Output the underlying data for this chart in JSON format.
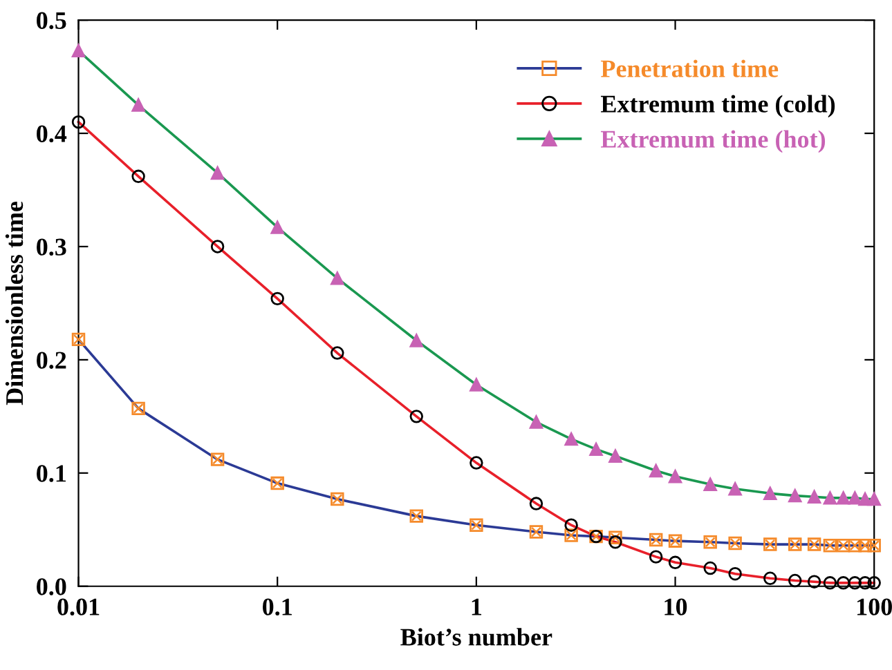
{
  "chart_data": {
    "type": "line",
    "xlabel": "Biot’s number",
    "ylabel": "Dimensionless time",
    "log": "x",
    "xlim": [
      0.01,
      100
    ],
    "xticks": [
      0.01,
      0.1,
      1,
      10,
      100
    ],
    "ylim": [
      0,
      0.5
    ],
    "yticks": [
      {
        "value": 0,
        "label": "0.0"
      },
      0.1,
      0.2,
      0.3,
      0.4,
      0.5
    ],
    "legend": "top right",
    "grid": false,
    "line_style": "solid",
    "x": [
      0.01,
      0.02,
      0.05,
      0.1,
      0.2,
      0.5,
      1,
      2,
      3,
      4,
      5,
      8,
      10,
      15,
      20,
      30,
      40,
      50,
      60,
      70,
      80,
      90,
      100
    ],
    "series": [
      {
        "name": "Penetration time",
        "color": "#2b3a95",
        "colors": [
          "#f58a2a",
          "#f58a2a",
          "#f58a2a",
          "#f58a2a",
          "#f58a2a",
          "#f58a2a",
          "#f58a2a",
          "#f58a2a",
          "#f58a2a",
          "#f58a2a",
          "#f58a2a",
          "#f58a2a",
          "#f58a2a",
          "#f58a2a",
          "#f58a2a",
          "#f58a2a",
          "#f58a2a",
          "#f58a2a",
          "#f58a2a",
          "#f58a2a",
          "#f58a2a",
          "#f58a2a",
          "#f58a2a"
        ],
        "marker": "square",
        "values": [
          0.218,
          0.157,
          0.112,
          0.091,
          0.077,
          0.062,
          0.054,
          0.048,
          0.045,
          0.044,
          0.043,
          0.041,
          0.04,
          0.039,
          0.038,
          0.037,
          0.037,
          0.037,
          0.036,
          0.036,
          0.036,
          0.036,
          0.036
        ]
      },
      {
        "name": "Extremum time (cold)",
        "color": "#e8202a",
        "colors": [
          "#000000",
          "#000000",
          "#000000",
          "#000000",
          "#000000",
          "#000000",
          "#000000",
          "#000000",
          "#000000",
          "#000000",
          "#000000",
          "#000000",
          "#000000",
          "#000000",
          "#000000",
          "#000000",
          "#000000",
          "#000000",
          "#000000",
          "#000000",
          "#000000",
          "#000000",
          "#000000"
        ],
        "marker": "circle",
        "values": [
          0.41,
          0.362,
          0.3,
          0.254,
          0.206,
          0.15,
          0.109,
          0.073,
          0.054,
          0.044,
          0.039,
          0.026,
          0.021,
          0.016,
          0.011,
          0.007,
          0.005,
          0.004,
          0.003,
          0.003,
          0.003,
          0.003,
          0.003
        ]
      },
      {
        "name": "Extremum time (hot)",
        "color": "#1a9850",
        "colors": [
          "#c862b4",
          "#c862b4",
          "#c862b4",
          "#c862b4",
          "#c862b4",
          "#c862b4",
          "#c862b4",
          "#c862b4",
          "#c862b4",
          "#c862b4",
          "#c862b4",
          "#c862b4",
          "#c862b4",
          "#c862b4",
          "#c862b4",
          "#c862b4",
          "#c862b4",
          "#c862b4",
          "#c862b4",
          "#c862b4",
          "#c862b4",
          "#c862b4",
          "#c862b4"
        ],
        "marker": "triangle",
        "values": [
          0.473,
          0.425,
          0.365,
          0.317,
          0.272,
          0.217,
          0.178,
          0.145,
          0.13,
          0.121,
          0.115,
          0.102,
          0.097,
          0.09,
          0.086,
          0.082,
          0.08,
          0.079,
          0.078,
          0.078,
          0.078,
          0.077,
          0.077
        ]
      }
    ]
  }
}
